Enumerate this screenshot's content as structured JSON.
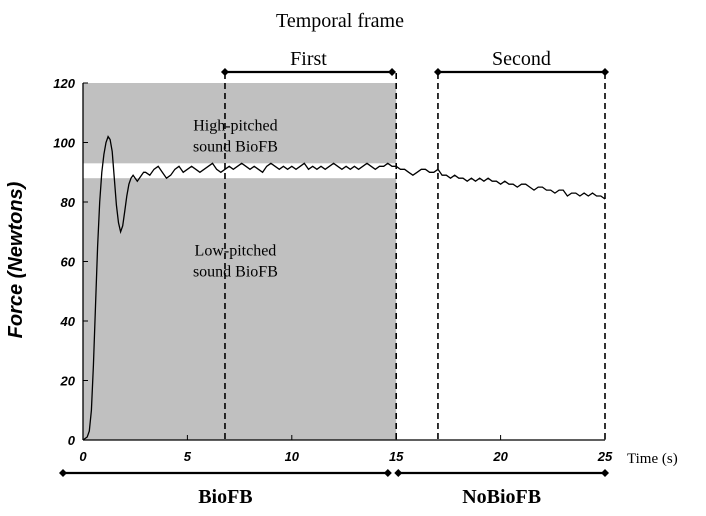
{
  "chart_data": {
    "type": "line",
    "title": "Temporal frame",
    "ylabel": "Force (Newtons)",
    "xlabel": "Time (s)",
    "xlim": [
      0,
      25
    ],
    "ylim": [
      0,
      120
    ],
    "x_ticks": [
      0,
      5,
      10,
      15,
      20,
      25
    ],
    "y_ticks": [
      0,
      20,
      40,
      60,
      80,
      100,
      120
    ],
    "grid": false,
    "shaded_region": {
      "x": [
        0,
        15
      ],
      "y": [
        0,
        120
      ],
      "color": "#c0c0c0"
    },
    "target_band": {
      "y": [
        88,
        93
      ],
      "color": "#ffffff"
    },
    "band_labels": [
      {
        "lines": [
          "High-pitched",
          "sound BioFB"
        ],
        "x": 7.3,
        "y": 104
      },
      {
        "lines": [
          "Low-pitched",
          "sound BioFB"
        ],
        "x": 7.3,
        "y": 62
      }
    ],
    "temporal_frames": [
      {
        "label": "First",
        "start": 6.8,
        "end": 14.8
      },
      {
        "label": "Second",
        "start": 17.0,
        "end": 25.0
      }
    ],
    "dashed_lines_x": [
      6.8,
      15.0,
      17.0,
      25.0
    ],
    "phases": [
      {
        "label": "BioFB",
        "start": 0,
        "end": 14.6
      },
      {
        "label": "NoBioFB",
        "start": 15.1,
        "end": 25.0
      }
    ],
    "series": [
      {
        "x": [
          0,
          0.2,
          0.3,
          0.4,
          0.5,
          0.6,
          0.7,
          0.8,
          0.9,
          1.0,
          1.1,
          1.2,
          1.3,
          1.4,
          1.5,
          1.6,
          1.7,
          1.8,
          1.9,
          2.0,
          2.1,
          2.2,
          2.3,
          2.4,
          2.5,
          2.6,
          2.7,
          2.8,
          2.9,
          3.0,
          3.2,
          3.4,
          3.6,
          3.8,
          4.0,
          4.2,
          4.4,
          4.6,
          4.8,
          5.0,
          5.2,
          5.4,
          5.6,
          5.8,
          6.0,
          6.2,
          6.4,
          6.6,
          6.8,
          7.0,
          7.2,
          7.4,
          7.6,
          7.8,
          8.0,
          8.2,
          8.4,
          8.6,
          8.8,
          9.0,
          9.2,
          9.4,
          9.6,
          9.8,
          10.0,
          10.2,
          10.4,
          10.6,
          10.8,
          11.0,
          11.2,
          11.4,
          11.6,
          11.8,
          12.0,
          12.2,
          12.4,
          12.6,
          12.8,
          13.0,
          13.2,
          13.4,
          13.6,
          13.8,
          14.0,
          14.2,
          14.4,
          14.6,
          14.8,
          15.0,
          15.2,
          15.4,
          15.6,
          15.8,
          16.0,
          16.2,
          16.4,
          16.6,
          16.8,
          17.0,
          17.2,
          17.4,
          17.6,
          17.8,
          18.0,
          18.2,
          18.4,
          18.6,
          18.8,
          19.0,
          19.2,
          19.4,
          19.6,
          19.8,
          20.0,
          20.2,
          20.4,
          20.6,
          20.8,
          21.0,
          21.2,
          21.4,
          21.6,
          21.8,
          22.0,
          22.2,
          22.4,
          22.6,
          22.8,
          23.0,
          23.2,
          23.4,
          23.6,
          23.8,
          24.0,
          24.2,
          24.4,
          24.6,
          24.8,
          25.0
        ],
        "y": [
          0,
          1,
          3,
          10,
          25,
          45,
          65,
          80,
          90,
          96,
          100,
          102,
          101,
          97,
          88,
          79,
          73,
          70,
          72,
          77,
          82,
          86,
          88,
          89,
          88,
          87,
          88,
          89,
          90,
          90,
          89,
          91,
          92,
          90,
          88,
          89,
          91,
          92,
          90,
          91,
          92,
          91,
          90,
          91,
          92,
          93,
          91,
          90,
          91,
          92,
          91,
          92,
          93,
          92,
          91,
          92,
          91,
          90,
          92,
          93,
          92,
          91,
          92,
          91,
          92,
          91,
          92,
          93,
          91,
          92,
          91,
          92,
          91,
          92,
          93,
          92,
          91,
          92,
          91,
          92,
          91,
          92,
          93,
          92,
          91,
          92,
          92,
          93,
          92,
          92,
          91,
          91,
          90,
          89,
          90,
          91,
          91,
          90,
          90,
          91,
          89,
          89,
          88,
          89,
          88,
          88,
          87,
          88,
          87,
          88,
          87,
          88,
          87,
          87,
          86,
          87,
          86,
          86,
          85,
          86,
          86,
          85,
          84,
          85,
          85,
          84,
          84,
          83,
          84,
          84,
          82,
          83,
          83,
          82,
          83,
          82,
          83,
          82,
          82,
          81
        ]
      }
    ]
  }
}
